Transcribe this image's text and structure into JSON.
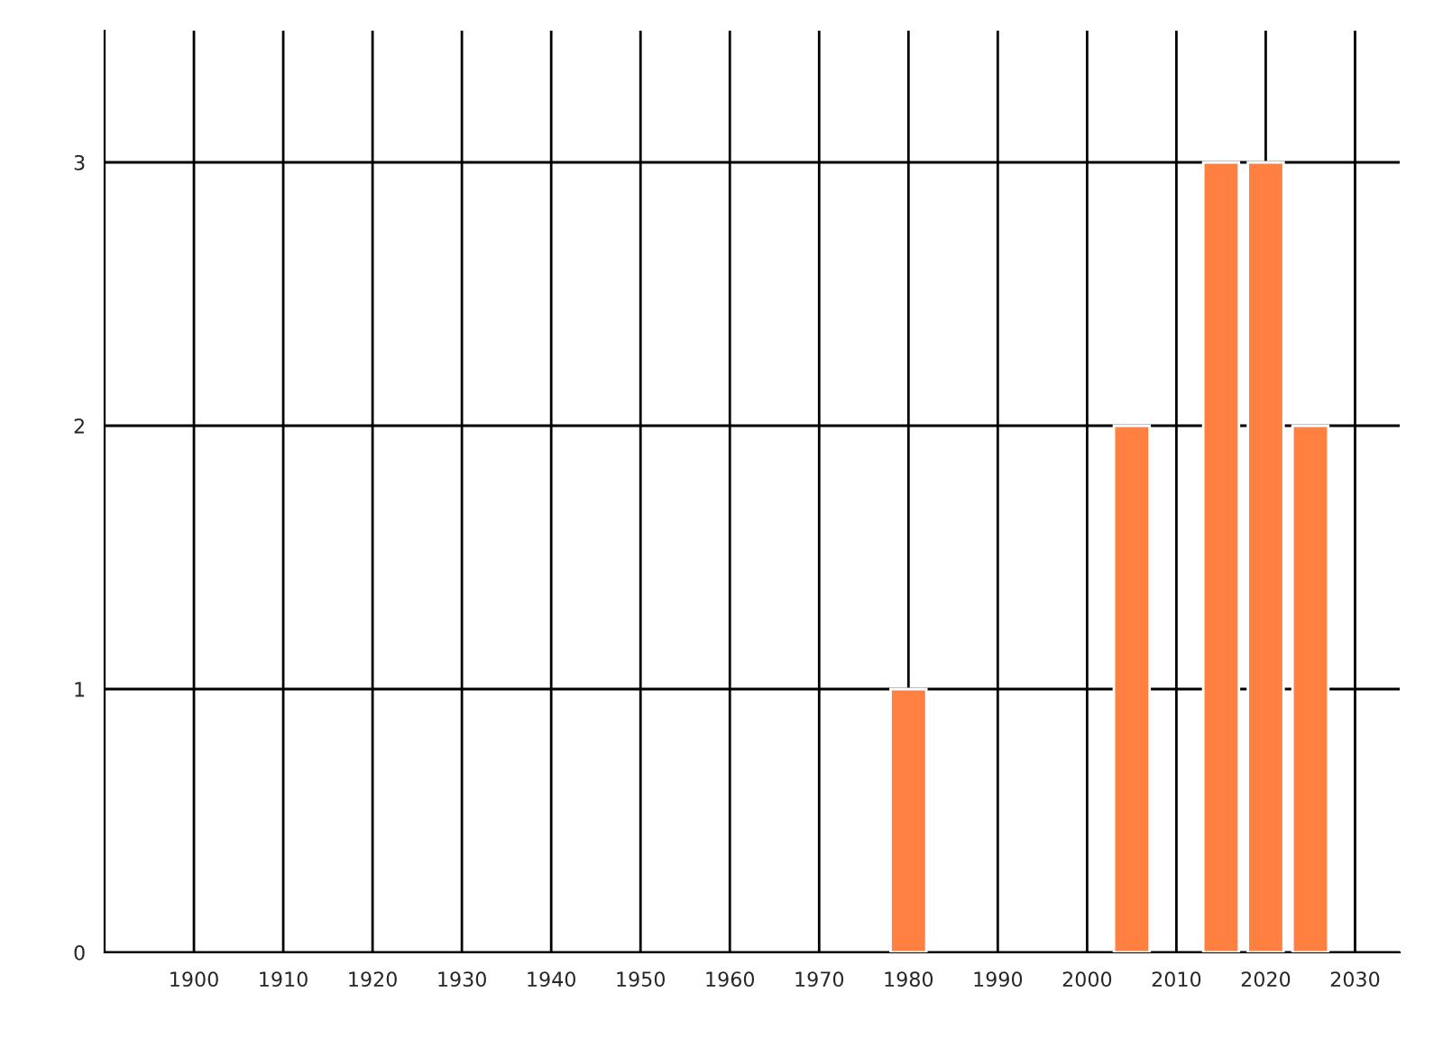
{
  "chart_data": {
    "type": "bar",
    "x": [
      1980,
      2005,
      2015,
      2020,
      2025
    ],
    "values": [
      1,
      2,
      3,
      3,
      2
    ],
    "color": "#ff8040",
    "xlim": [
      1890,
      2035
    ],
    "xticks": [
      1900,
      1910,
      1920,
      1930,
      1940,
      1950,
      1960,
      1970,
      1980,
      1990,
      2000,
      2010,
      2020,
      2030
    ],
    "ylim": [
      0,
      3.5
    ],
    "yticks": [
      0,
      1,
      2,
      3
    ],
    "grid": true,
    "legend": false
  }
}
